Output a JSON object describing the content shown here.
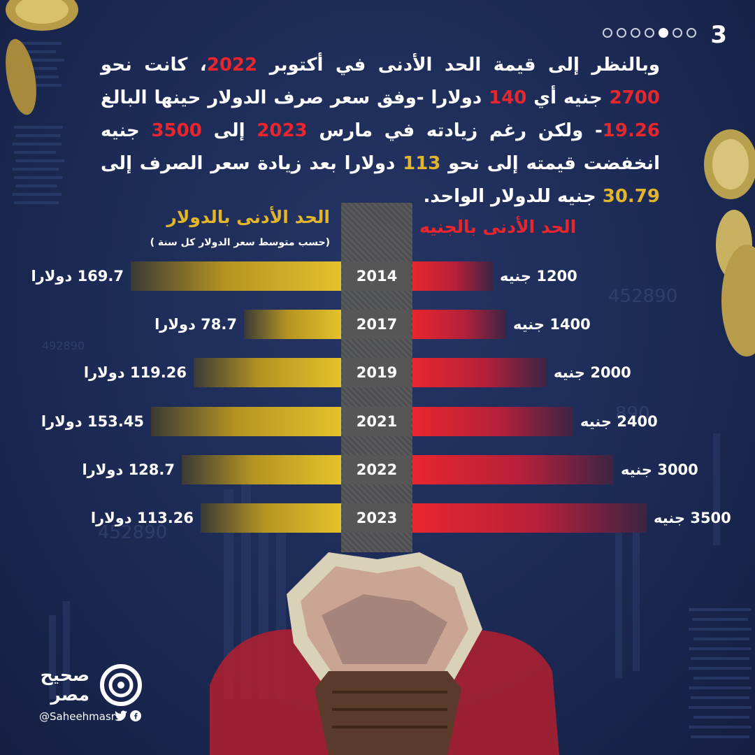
{
  "page": {
    "number": "3",
    "dots_total": 7,
    "dots_active_index": 4
  },
  "intro": {
    "line1": [
      "وبالنظر إلى قيمة الحد الأدنى في أكتوبر ",
      "2022",
      "، كانت نحو ",
      "2700",
      " جنيه"
    ],
    "line2": [
      "أي ",
      "140",
      " دولارا -وفق سعر صرف الدولار حينها البالغ ",
      "19.26",
      "- ولكن رغم"
    ],
    "line3": [
      "زيادته في مارس ",
      "2023",
      " إلى ",
      "3500",
      " جنيه انخفضت قيمته إلى نحو ",
      "113"
    ],
    "line4": [
      "دولارا بعد زيادة سعر الصرف إلى ",
      "30.79",
      " جنيه للدولار الواحد."
    ]
  },
  "chart_data": {
    "type": "bar",
    "orientation": "horizontal-butterfly",
    "categories": [
      "2014",
      "2017",
      "2019",
      "2021",
      "2022",
      "2023"
    ],
    "series": [
      {
        "name": "الحد الأدنى بالدولار",
        "note": "(حسب متوسط سعر الدولار كل سنة )",
        "unit": "دولارا",
        "values": [
          169.7,
          78.7,
          119.26,
          153.45,
          128.7,
          113.26
        ],
        "labels": [
          "169.7 دولارا",
          "78.7 دولارا",
          "119.26 دولارا",
          "153.45 دولارا",
          "128.7 دولارا",
          "113.26 دولارا"
        ],
        "color": "#e3b52b"
      },
      {
        "name": "الحد الأدنى بالجنيه",
        "unit": "جنيه",
        "values": [
          1200,
          1400,
          2000,
          2400,
          3000,
          3500
        ],
        "labels": [
          "1200 جنيه",
          "1400 جنيه",
          "2000 جنيه",
          "2400 جنيه",
          "3000 جنيه",
          "3500 جنيه"
        ],
        "color": "#e8262d"
      }
    ]
  },
  "brand": {
    "name_line1": "صحيح",
    "name_line2": "مصر",
    "handle": "@Saheehmasr",
    "icons": [
      "twitter-icon",
      "facebook-icon"
    ]
  }
}
